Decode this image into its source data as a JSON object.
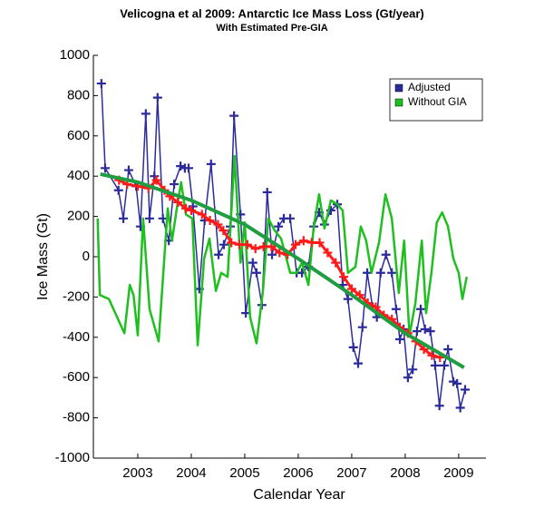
{
  "chart_data": {
    "type": "line",
    "title": "Velicogna et al 2009: Antarctic Ice Mass Loss (Gt/year)",
    "subtitle": "With Estimated Pre-GIA",
    "y_label": "Ice Mass (Gt)",
    "x_label": "Calendar Year",
    "xlim": [
      2002.17,
      2009.51
    ],
    "ylim": [
      -1000,
      1000
    ],
    "xticks": [
      2003,
      2004,
      2005,
      2006,
      2007,
      2008,
      2009
    ],
    "yticks": [
      -1000,
      -800,
      -600,
      -400,
      -200,
      0,
      200,
      400,
      600,
      800,
      1000
    ],
    "legend": "upper right",
    "series": [
      {
        "name": "Adjusted",
        "color": "#2b2b9c",
        "marker": "+",
        "line_width": 1.5,
        "x": [
          2002.32,
          2002.39,
          2002.64,
          2002.73,
          2002.83,
          2002.97,
          2003.05,
          2003.15,
          2003.22,
          2003.31,
          2003.37,
          2003.47,
          2003.58,
          2003.68,
          2003.8,
          2003.88,
          2003.95,
          2004.03,
          2004.15,
          2004.25,
          2004.37,
          2004.51,
          2004.61,
          2004.73,
          2004.8,
          2004.92,
          2005.02,
          2005.15,
          2005.22,
          2005.32,
          2005.42,
          2005.51,
          2005.63,
          2005.73,
          2005.85,
          2005.97,
          2006.07,
          2006.19,
          2006.29,
          2006.39,
          2006.49,
          2006.61,
          2006.73,
          2006.83,
          2006.93,
          2007.03,
          2007.12,
          2007.2,
          2007.29,
          2007.39,
          2007.47,
          2007.54,
          2007.64,
          2007.75,
          2007.83,
          2007.9,
          2007.97,
          2008.05,
          2008.14,
          2008.22,
          2008.29,
          2008.37,
          2008.47,
          2008.56,
          2008.64,
          2008.73,
          2008.8,
          2008.9,
          2008.97,
          2009.03,
          2009.12
        ],
        "values": [
          860,
          440,
          330,
          190,
          430,
          350,
          150,
          710,
          190,
          400,
          790,
          190,
          80,
          360,
          450,
          440,
          440,
          250,
          -160,
          180,
          460,
          10,
          60,
          150,
          700,
          210,
          -280,
          -30,
          -80,
          -240,
          320,
          10,
          150,
          190,
          190,
          -80,
          -80,
          -50,
          150,
          220,
          160,
          230,
          260,
          -140,
          -210,
          -450,
          -530,
          -350,
          -80,
          -250,
          -300,
          -80,
          10,
          -80,
          -260,
          -410,
          -360,
          -600,
          -560,
          -370,
          -260,
          -360,
          -370,
          -540,
          -740,
          -540,
          -460,
          -620,
          -630,
          -750,
          -660
        ]
      },
      {
        "name": "Without GIA",
        "color": "#1fbf1f",
        "line_width": 2.5,
        "x": [
          2002.25,
          2002.29,
          2002.46,
          2002.75,
          2002.85,
          2002.92,
          2003.0,
          2003.1,
          2003.22,
          2003.39,
          2003.56,
          2003.64,
          2003.73,
          2003.81,
          2003.9,
          2004.02,
          2004.12,
          2004.24,
          2004.34,
          2004.46,
          2004.56,
          2004.68,
          2004.81,
          2004.92,
          2005.0,
          2005.1,
          2005.22,
          2005.34,
          2005.44,
          2005.56,
          2005.68,
          2005.85,
          2005.97,
          2006.07,
          2006.19,
          2006.29,
          2006.39,
          2006.49,
          2006.61,
          2006.73,
          2006.83,
          2006.93,
          2007.07,
          2007.17,
          2007.27,
          2007.37,
          2007.51,
          2007.63,
          2007.75,
          2007.88,
          2007.98,
          2008.08,
          2008.19,
          2008.31,
          2008.39,
          2008.49,
          2008.59,
          2008.69,
          2008.8,
          2008.9,
          2009.0,
          2009.07,
          2009.15
        ],
        "values": [
          190,
          -190,
          -210,
          -380,
          -140,
          -190,
          -390,
          190,
          -260,
          -420,
          240,
          80,
          240,
          370,
          210,
          190,
          -440,
          -10,
          90,
          -170,
          -80,
          -100,
          500,
          -30,
          170,
          -300,
          -430,
          -170,
          190,
          130,
          90,
          -80,
          -80,
          -30,
          -140,
          150,
          310,
          140,
          280,
          260,
          230,
          -80,
          -50,
          150,
          80,
          -80,
          70,
          310,
          190,
          -180,
          80,
          -390,
          -230,
          80,
          -280,
          -80,
          170,
          220,
          150,
          -10,
          -80,
          -210,
          -100
        ]
      },
      {
        "color": "#ff1a1a",
        "marker": "+",
        "line_width": 3,
        "x": [
          2002.65,
          2002.8,
          2003.0,
          2003.2,
          2003.35,
          2003.5,
          2003.6,
          2003.75,
          2003.9,
          2004.0,
          2004.2,
          2004.35,
          2004.5,
          2004.6,
          2004.75,
          2004.9,
          2005.05,
          2005.2,
          2005.35,
          2005.5,
          2005.65,
          2005.8,
          2005.95,
          2006.1,
          2006.25,
          2006.4,
          2006.55,
          2006.7,
          2006.85,
          2007.0,
          2007.15,
          2007.3,
          2007.45,
          2007.6,
          2007.75,
          2007.9,
          2008.05,
          2008.2,
          2008.35,
          2008.5,
          2008.65
        ],
        "values": [
          380,
          360,
          350,
          340,
          380,
          330,
          300,
          270,
          240,
          230,
          210,
          180,
          160,
          130,
          70,
          60,
          60,
          40,
          50,
          50,
          20,
          10,
          60,
          80,
          70,
          70,
          20,
          -30,
          -100,
          -160,
          -190,
          -230,
          -250,
          -290,
          -310,
          -350,
          -380,
          -420,
          -460,
          -490,
          -500
        ]
      },
      {
        "color": "#1e9e3e",
        "line_width": 4,
        "x": [
          2002.3,
          2003,
          2004,
          2005,
          2006,
          2007,
          2008,
          2009.1
        ],
        "values": [
          410,
          370,
          280,
          160,
          -10,
          -190,
          -380,
          -550
        ]
      }
    ]
  }
}
